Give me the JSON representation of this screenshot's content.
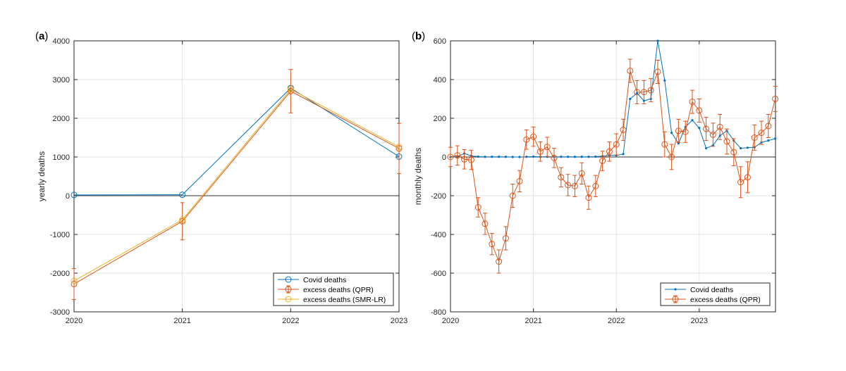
{
  "chart_data": [
    {
      "panel": "a",
      "type": "line",
      "ylabel": "yearly deaths",
      "xlabel": "",
      "x": [
        2020,
        2021,
        2022,
        2023
      ],
      "xticks": [
        "2020",
        "2021",
        "2022",
        "2023"
      ],
      "ylim": [
        -3000,
        4000
      ],
      "yticks": [
        "-3000",
        "-2000",
        "-1000",
        "0",
        "1000",
        "2000",
        "3000",
        "4000"
      ],
      "grid": true,
      "zero_line": true,
      "legend_position": "bottom-right",
      "series": [
        {
          "name": "Covid deaths",
          "color": "#0072BD",
          "marker": "circle",
          "values": [
            20,
            25,
            2780,
            1010
          ]
        },
        {
          "name": "excess deaths (QPR)",
          "color": "#D95319",
          "marker": "circle-errorbar",
          "values": [
            -2280,
            -660,
            2700,
            1220
          ],
          "err": [
            400,
            480,
            560,
            650
          ]
        },
        {
          "name": "excess deaths (SMR-LR)",
          "color": "#EDB120",
          "marker": "circle",
          "values": [
            -2200,
            -620,
            2750,
            1260
          ]
        }
      ]
    },
    {
      "panel": "b",
      "type": "line",
      "ylabel": "monthly deaths",
      "xlabel": "",
      "xlim": [
        2020,
        2023.92
      ],
      "xticks": [
        "2020",
        "2021",
        "2022",
        "2023"
      ],
      "ylim": [
        -800,
        600
      ],
      "yticks": [
        "-800",
        "-600",
        "-400",
        "-200",
        "0",
        "200",
        "400",
        "600"
      ],
      "grid": true,
      "zero_line": true,
      "legend_position": "bottom-right",
      "series": [
        {
          "name": "Covid deaths",
          "color": "#0072BD",
          "marker": "dot",
          "values": [
            0,
            2,
            18,
            6,
            2,
            1,
            1,
            1,
            1,
            0,
            0,
            1,
            2,
            1,
            1,
            1,
            1,
            1,
            1,
            1,
            1,
            2,
            4,
            8,
            8,
            15,
            300,
            330,
            290,
            300,
            600,
            395,
            125,
            70,
            155,
            190,
            150,
            45,
            60,
            110,
            135,
            85,
            45,
            48,
            50,
            75,
            85,
            95
          ]
        },
        {
          "name": "excess deaths (QPR)",
          "color": "#D95319",
          "marker": "circle-errorbar",
          "values": [
            0,
            8,
            -12,
            -15,
            -260,
            -345,
            -450,
            -540,
            -420,
            -200,
            -125,
            90,
            105,
            28,
            52,
            -5,
            -105,
            -145,
            -150,
            -85,
            -210,
            -150,
            -20,
            28,
            65,
            140,
            445,
            335,
            335,
            345,
            440,
            65,
            0,
            135,
            130,
            285,
            240,
            145,
            115,
            155,
            80,
            25,
            -130,
            -105,
            100,
            125,
            160,
            300
          ],
          "err": [
            50,
            50,
            50,
            50,
            50,
            55,
            55,
            60,
            60,
            60,
            55,
            50,
            50,
            50,
            50,
            50,
            50,
            55,
            55,
            55,
            60,
            55,
            50,
            50,
            55,
            55,
            60,
            60,
            60,
            60,
            60,
            65,
            65,
            60,
            55,
            60,
            60,
            60,
            60,
            65,
            65,
            70,
            80,
            80,
            65,
            60,
            60,
            65
          ]
        }
      ]
    }
  ],
  "panels": [
    {
      "label_open": "(",
      "label_letter": "a",
      "label_close": ")"
    },
    {
      "label_open": "(",
      "label_letter": "b",
      "label_close": ")"
    }
  ]
}
